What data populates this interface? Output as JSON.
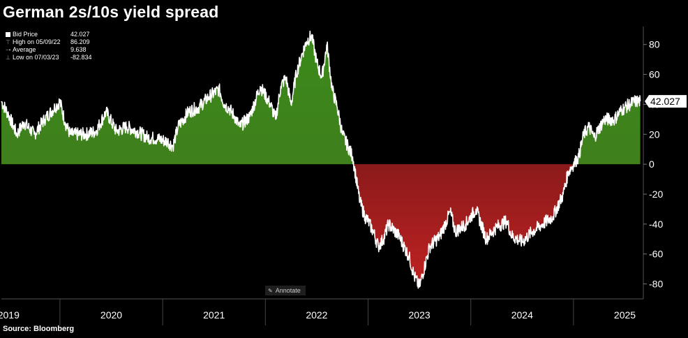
{
  "header": {
    "title": "German 2s/10s yield spread"
  },
  "footer": {
    "source": "Source: Bloomberg"
  },
  "legend": {
    "rows": [
      {
        "label": "Bid Price",
        "value": "42.027"
      },
      {
        "label": "High on 05/09/22",
        "value": "86.209"
      },
      {
        "label": "Average",
        "value": "9.638"
      },
      {
        "label": "Low on 07/03/23",
        "value": "-82.834"
      }
    ]
  },
  "annotate_label": "Annotate",
  "last_value_label": "42.027",
  "colors": {
    "positive_fill": "#3f7f1c",
    "negative_fill": "#8b1a1a",
    "line": "#ffffff",
    "label_bg": "#ffffff"
  },
  "chart_data": {
    "type": "area",
    "title": "German 2s/10s yield spread",
    "xlabel": "",
    "ylabel": "",
    "ylim": [
      -90,
      92
    ],
    "xlim": [
      2018.93,
      2025.18
    ],
    "y_ticks": [
      80,
      60,
      40,
      20,
      0,
      -20,
      -40,
      -60,
      -80
    ],
    "y_tick_labels": [
      "80",
      "60",
      "40",
      "20",
      "0",
      "-20",
      "-40",
      "-60",
      "-80"
    ],
    "x_label_positions": [
      2019.0,
      2020.0,
      2021.0,
      2022.0,
      2023.0,
      2024.0,
      2025.0
    ],
    "x_labels": [
      "2019",
      "2020",
      "2021",
      "2022",
      "2023",
      "2024",
      "2025"
    ],
    "x_separators": [
      2019.5,
      2020.5,
      2021.5,
      2022.5,
      2023.5,
      2024.5
    ],
    "last_value": 42.027,
    "series": [
      {
        "name": "Bid Price",
        "x": [
          2018.93,
          2019.0,
          2019.08,
          2019.15,
          2019.25,
          2019.35,
          2019.45,
          2019.5,
          2019.55,
          2019.6,
          2019.65,
          2019.75,
          2019.85,
          2019.95,
          2020.05,
          2020.15,
          2020.25,
          2020.35,
          2020.45,
          2020.55,
          2020.6,
          2020.65,
          2020.75,
          2020.85,
          2020.95,
          2021.05,
          2021.1,
          2021.15,
          2021.2,
          2021.25,
          2021.35,
          2021.45,
          2021.55,
          2021.6,
          2021.65,
          2021.7,
          2021.75,
          2021.8,
          2021.85,
          2021.9,
          2021.95,
          2022.0,
          2022.05,
          2022.1,
          2022.15,
          2022.2,
          2022.25,
          2022.35,
          2022.42,
          2022.47,
          2022.5,
          2022.55,
          2022.6,
          2022.65,
          2022.7,
          2022.8,
          2022.9,
          2022.95,
          2023.0,
          2023.1,
          2023.2,
          2023.25,
          2023.3,
          2023.35,
          2023.45,
          2023.55,
          2023.65,
          2023.75,
          2023.85,
          2023.9,
          2024.0,
          2024.1,
          2024.2,
          2024.3,
          2024.4,
          2024.45,
          2024.5,
          2024.55,
          2024.6,
          2024.65,
          2024.7,
          2024.8,
          2024.9,
          2024.95,
          2025.0,
          2025.05,
          2025.1,
          2025.15
        ],
        "y": [
          42,
          33,
          20,
          28,
          20,
          30,
          38,
          42,
          28,
          20,
          20,
          20,
          22,
          35,
          22,
          25,
          22,
          18,
          17,
          15,
          12,
          25,
          35,
          38,
          45,
          50,
          40,
          37,
          32,
          25,
          32,
          52,
          40,
          30,
          52,
          58,
          40,
          60,
          72,
          82,
          86,
          68,
          58,
          80,
          50,
          38,
          20,
          5,
          -25,
          -35,
          -38,
          -45,
          -55,
          -50,
          -40,
          -48,
          -62,
          -75,
          -82,
          -55,
          -48,
          -40,
          -32,
          -45,
          -40,
          -30,
          -50,
          -42,
          -38,
          -48,
          -52,
          -45,
          -40,
          -35,
          -20,
          -5,
          0,
          5,
          20,
          25,
          18,
          30,
          30,
          35,
          38,
          40,
          42,
          42.027
        ]
      }
    ]
  }
}
